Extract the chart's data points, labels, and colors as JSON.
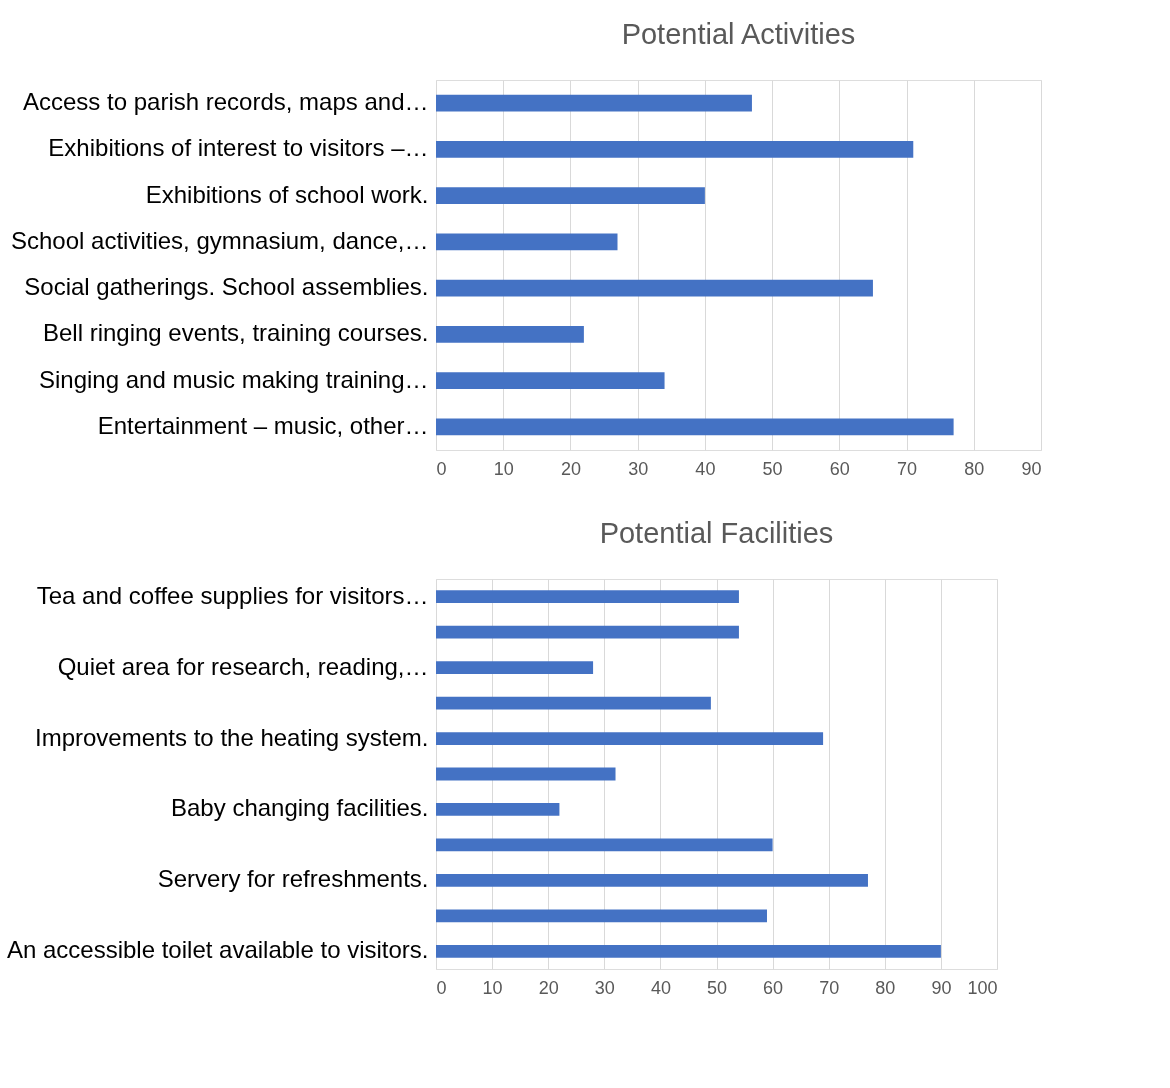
{
  "chart_data": [
    {
      "type": "bar",
      "orientation": "horizontal",
      "title": "Potential Activities",
      "categories": [
        "Access to parish records, maps and…",
        "Exhibitions of interest to visitors –…",
        "Exhibitions of school work.",
        "School activities, gymnasium, dance,…",
        "Social gatherings. School assemblies.",
        "Bell ringing events, training courses.",
        "Singing and music making training…",
        "Entertainment – music, other…"
      ],
      "values": [
        47,
        71,
        40,
        27,
        65,
        22,
        34,
        77
      ],
      "color": "#4472c4",
      "xlim": [
        0,
        90
      ],
      "xticks": [
        0,
        10,
        20,
        30,
        40,
        50,
        60,
        70,
        80,
        90
      ],
      "grid": "x"
    },
    {
      "type": "bar",
      "orientation": "horizontal",
      "title": "Potential Facilities",
      "categories": [
        "Tea and coffee supplies for visitors…",
        null,
        "Quiet area for research, reading,…",
        null,
        "Improvements to the heating system.",
        null,
        "Baby changing facilities.",
        null,
        "Servery for refreshments.",
        null,
        "An accessible toilet available to visitors."
      ],
      "values": [
        54,
        54,
        28,
        49,
        69,
        32,
        22,
        60,
        77,
        59,
        90
      ],
      "color": "#4472c4",
      "xlim": [
        0,
        100
      ],
      "xticks": [
        0,
        10,
        20,
        30,
        40,
        50,
        60,
        70,
        80,
        90,
        100
      ],
      "grid": "x"
    }
  ]
}
